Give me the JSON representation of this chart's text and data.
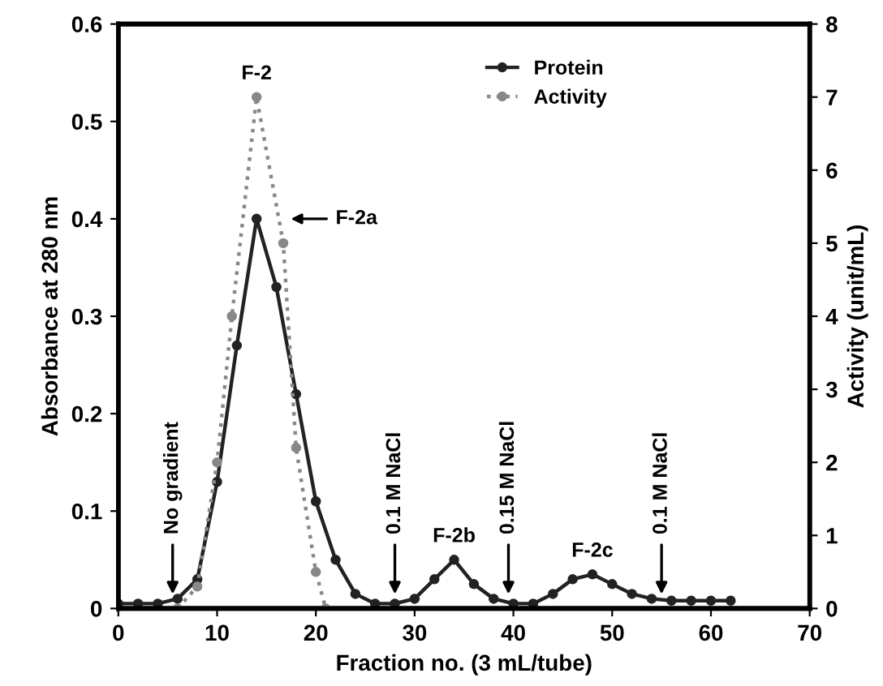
{
  "chart_data": {
    "type": "line",
    "xlabel": "Fraction no. (3 mL/tube)",
    "ylabel": "Absorbance at 280 nm",
    "y2label": "Activity (unit/mL)",
    "xlim": [
      0,
      70
    ],
    "xticks": [
      0,
      10,
      20,
      30,
      40,
      50,
      60,
      70
    ],
    "ylim": [
      0,
      0.6
    ],
    "yticks": [
      0,
      0.1,
      0.2,
      0.3,
      0.4,
      0.5,
      0.6
    ],
    "y2lim": [
      0,
      8
    ],
    "y2ticks": [
      0,
      1,
      2,
      3,
      4,
      5,
      6,
      7,
      8
    ],
    "grid": false,
    "legend": "top",
    "marker": "circle",
    "series": [
      {
        "name": "Protein",
        "color": "#222222",
        "line_style": "solid",
        "x": [
          0,
          2,
          4,
          6,
          8,
          10,
          12,
          14,
          16,
          18,
          20,
          22,
          24,
          26,
          28,
          30,
          32,
          34,
          36,
          38,
          40,
          42,
          44,
          46,
          48,
          50,
          52,
          54,
          56,
          58,
          60,
          62
        ],
        "values": [
          0.005,
          0.005,
          0.005,
          0.01,
          0.03,
          0.13,
          0.27,
          0.4,
          0.33,
          0.22,
          0.11,
          0.05,
          0.015,
          0.005,
          0.005,
          0.01,
          0.03,
          0.05,
          0.025,
          0.01,
          0.005,
          0.005,
          0.015,
          0.03,
          0.035,
          0.025,
          0.015,
          0.01,
          0.008,
          0.008,
          0.008,
          0.008
        ]
      },
      {
        "name": "Activity",
        "color": "#888888",
        "line_style": "dotted",
        "axis": "y2",
        "x": [
          6,
          8,
          10,
          11.5,
          14,
          16.7,
          18,
          20,
          21
        ],
        "values": [
          0,
          0.3,
          2,
          4,
          7,
          5,
          2.2,
          0.5,
          0
        ]
      }
    ],
    "annotations": [
      {
        "text": "F-2",
        "x": 14,
        "y": 0.525
      },
      {
        "text": "F-2a",
        "x": 17,
        "y": 0.4
      },
      {
        "text": "F-2b",
        "x": 34,
        "y": 0.05
      },
      {
        "text": "F-2c",
        "x": 48,
        "y": 0.035
      },
      {
        "text": "No gradient",
        "x": 5.5,
        "y": 0.01
      },
      {
        "text": "0.1 M NaCl",
        "x": 28,
        "y": 0.01
      },
      {
        "text": "0.15 M NaCl",
        "x": 39.5,
        "y": 0.01
      },
      {
        "text": "0.1 M NaCl",
        "x": 55,
        "y": 0.01
      }
    ]
  }
}
